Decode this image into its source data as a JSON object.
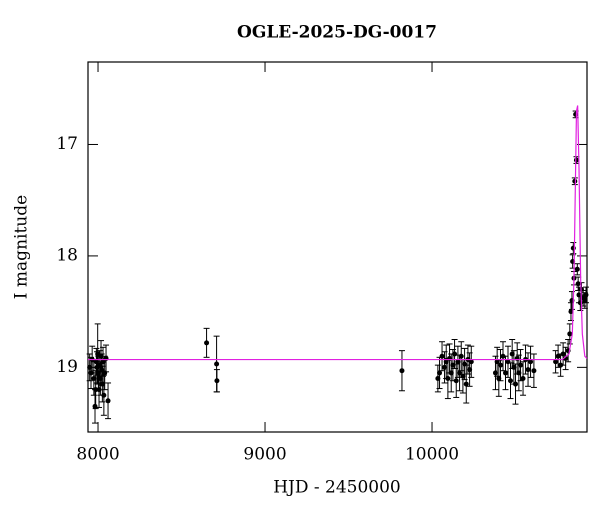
{
  "chart_data": {
    "type": "scatter",
    "title": "OGLE-2025-DG-0017",
    "xlabel": "HJD - 2450000",
    "ylabel": "I magnitude",
    "xlim": [
      7940,
      10928
    ],
    "ylim": [
      19.58,
      16.26
    ],
    "xticks": [
      8000,
      9000,
      10000
    ],
    "yticks": [
      17,
      18,
      19
    ],
    "series": [
      {
        "color": "#000000",
        "x": [
          7950,
          7958,
          7965,
          7975,
          7982,
          7986,
          7990,
          7994,
          7998,
          8002,
          8006,
          8010,
          8014,
          8018,
          8022,
          8026,
          8030,
          8035,
          8040,
          8048,
          8060,
          8650,
          8710,
          8712,
          9820,
          10035,
          10045,
          10060,
          10075,
          10085,
          10095,
          10105,
          10115,
          10125,
          10135,
          10145,
          10155,
          10165,
          10175,
          10185,
          10195,
          10205,
          10215,
          10225,
          10235,
          10380,
          10390,
          10400,
          10410,
          10425,
          10440,
          10455,
          10470,
          10480,
          10490,
          10500,
          10510,
          10520,
          10530,
          10545,
          10560,
          10575,
          10590,
          10610,
          10740,
          10755,
          10770,
          10785,
          10800,
          10815,
          10825,
          10832,
          10838,
          10842,
          10846,
          10850,
          10855,
          10860,
          10865,
          10870,
          10875,
          10880,
          10888,
          10895,
          10905,
          10915,
          10922
        ],
        "values": [
          19.0,
          19.05,
          18.93,
          19.1,
          19.35,
          19.2,
          18.95,
          19.0,
          18.88,
          19.05,
          19.2,
          18.98,
          19.1,
          18.9,
          19.02,
          19.15,
          18.95,
          19.25,
          19.05,
          18.92,
          19.3,
          18.78,
          18.97,
          19.12,
          19.03,
          19.1,
          19.05,
          18.9,
          19.0,
          18.95,
          19.1,
          18.92,
          19.05,
          18.98,
          18.88,
          19.12,
          18.95,
          19.05,
          18.9,
          19.08,
          18.97,
          19.15,
          18.93,
          19.02,
          18.95,
          19.05,
          18.95,
          19.1,
          18.98,
          18.9,
          19.05,
          18.95,
          19.12,
          18.88,
          19.0,
          19.15,
          18.92,
          19.05,
          18.98,
          19.1,
          18.93,
          19.02,
          18.95,
          19.03,
          18.95,
          18.9,
          18.98,
          18.88,
          18.92,
          18.85,
          18.7,
          18.5,
          18.4,
          18.05,
          17.93,
          18.2,
          17.33,
          16.73,
          17.14,
          18.12,
          18.25,
          18.35,
          18.42,
          18.3,
          18.38,
          18.4,
          18.35
        ],
        "errors": [
          0.12,
          0.14,
          0.12,
          0.15,
          0.15,
          0.17,
          0.12,
          0.14,
          0.27,
          0.15,
          0.16,
          0.13,
          0.15,
          0.14,
          0.14,
          0.16,
          0.13,
          0.18,
          0.15,
          0.12,
          0.16,
          0.13,
          0.25,
          0.1,
          0.18,
          0.12,
          0.14,
          0.13,
          0.14,
          0.15,
          0.18,
          0.13,
          0.17,
          0.14,
          0.13,
          0.15,
          0.14,
          0.16,
          0.13,
          0.15,
          0.14,
          0.17,
          0.13,
          0.15,
          0.14,
          0.15,
          0.13,
          0.16,
          0.14,
          0.13,
          0.15,
          0.14,
          0.16,
          0.13,
          0.15,
          0.18,
          0.14,
          0.16,
          0.14,
          0.15,
          0.13,
          0.15,
          0.14,
          0.15,
          0.1,
          0.1,
          0.1,
          0.1,
          0.1,
          0.1,
          0.09,
          0.08,
          0.08,
          0.06,
          0.05,
          0.06,
          0.03,
          0.03,
          0.03,
          0.05,
          0.06,
          0.07,
          0.07,
          0.06,
          0.07,
          0.07,
          0.07
        ]
      },
      {
        "color": "#e020e0",
        "x": [
          7940,
          10780,
          10820,
          10840,
          10850,
          10858,
          10865,
          10872,
          10880,
          10890,
          10900,
          10915,
          10928
        ],
        "values": [
          18.93,
          18.93,
          18.88,
          18.7,
          18.2,
          17.4,
          16.7,
          16.65,
          17.2,
          18.2,
          18.7,
          18.9,
          18.92
        ]
      }
    ]
  }
}
